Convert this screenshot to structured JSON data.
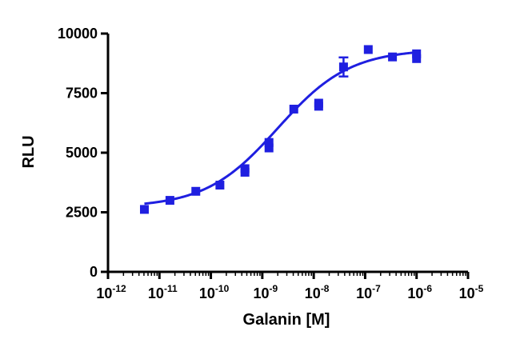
{
  "chart_data": {
    "type": "scatter",
    "title": "",
    "xlabel": "Galanin [M]",
    "ylabel": "RLU",
    "x_scale": "log",
    "xlim": [
      1e-12,
      1e-05
    ],
    "ylim": [
      0,
      10000
    ],
    "x_ticks": [
      {
        "base": "10",
        "exp": "-12",
        "value": 1e-12
      },
      {
        "base": "10",
        "exp": "-11",
        "value": 1e-11
      },
      {
        "base": "10",
        "exp": "-10",
        "value": 1e-10
      },
      {
        "base": "10",
        "exp": "-9",
        "value": 1e-09
      },
      {
        "base": "10",
        "exp": "-8",
        "value": 1e-08
      },
      {
        "base": "10",
        "exp": "-7",
        "value": 1e-07
      },
      {
        "base": "10",
        "exp": "-6",
        "value": 1e-06
      },
      {
        "base": "10",
        "exp": "-5",
        "value": 1e-05
      }
    ],
    "y_ticks": [
      "0",
      "2500",
      "5000",
      "7500",
      "10000"
    ],
    "grid": false,
    "legend": "none",
    "color": "#1f1fe0",
    "points": [
      {
        "x": 5.1e-12,
        "y": 2620
      },
      {
        "x": 1.6e-11,
        "y": 3000
      },
      {
        "x": 5.1e-11,
        "y": 3380
      },
      {
        "x": 1.5e-10,
        "y": 3640
      },
      {
        "x": 4.6e-10,
        "y": 4180
      },
      {
        "x": 4.6e-10,
        "y": 4330
      },
      {
        "x": 1.35e-09,
        "y": 5200
      },
      {
        "x": 1.35e-09,
        "y": 5430
      },
      {
        "x": 4.1e-09,
        "y": 6830
      },
      {
        "x": 1.25e-08,
        "y": 6950
      },
      {
        "x": 1.25e-08,
        "y": 7080
      },
      {
        "x": 3.8e-08,
        "y": 8600,
        "err": 400
      },
      {
        "x": 1.15e-07,
        "y": 9330
      },
      {
        "x": 3.4e-07,
        "y": 9020
      },
      {
        "x": 1e-06,
        "y": 8950
      },
      {
        "x": 1e-06,
        "y": 9150
      }
    ],
    "fit": {
      "bottom": 2700,
      "top": 9350,
      "log_ec50": -8.7,
      "hill": 0.62
    }
  }
}
